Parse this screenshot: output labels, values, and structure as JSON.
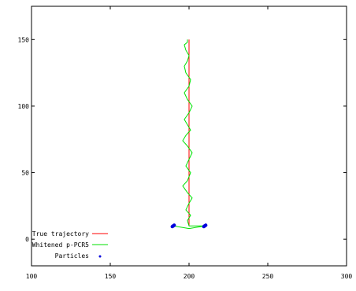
{
  "chart_data": {
    "type": "line",
    "title": "",
    "xlabel": "",
    "ylabel": "",
    "xlim": [
      100,
      300
    ],
    "ylim": [
      -20,
      175
    ],
    "x_ticks": [
      100,
      150,
      200,
      250,
      300
    ],
    "x_tick_labels": [
      "100",
      "150",
      "200",
      "250",
      "300"
    ],
    "y_ticks": [
      0,
      50,
      100,
      150
    ],
    "y_tick_labels": [
      "0",
      "50",
      "100",
      "150"
    ],
    "grid": false,
    "legend_position": "bottom-left",
    "series": [
      {
        "name": "True trajectory",
        "style": "line",
        "color": "#ff0000",
        "x": [
          200,
          200
        ],
        "y": [
          10,
          150
        ]
      },
      {
        "name": "Whitened p-PCR5",
        "style": "line",
        "color": "#00e000",
        "x": [
          190,
          200,
          210,
          200,
          199,
          201,
          198,
          200,
          202,
          199,
          196,
          199,
          201,
          198,
          200,
          202,
          199,
          196,
          198,
          201,
          199,
          197,
          200,
          202,
          199,
          197,
          200,
          201,
          198,
          197,
          199,
          200,
          198,
          197,
          199,
          199
        ],
        "y": [
          10,
          8,
          10,
          10,
          14,
          18,
          22,
          27,
          31,
          35,
          40,
          44,
          50,
          55,
          60,
          65,
          70,
          74,
          78,
          82,
          86,
          90,
          95,
          100,
          105,
          110,
          115,
          120,
          125,
          130,
          134,
          138,
          142,
          146,
          148,
          150
        ]
      },
      {
        "name": "Particles",
        "style": "points",
        "color": "#0000dd",
        "x": [
          190,
          190.6,
          189.4,
          210,
          210.6,
          209.4
        ],
        "y": [
          10,
          10.5,
          9.5,
          10,
          10.5,
          9.5
        ]
      }
    ]
  }
}
